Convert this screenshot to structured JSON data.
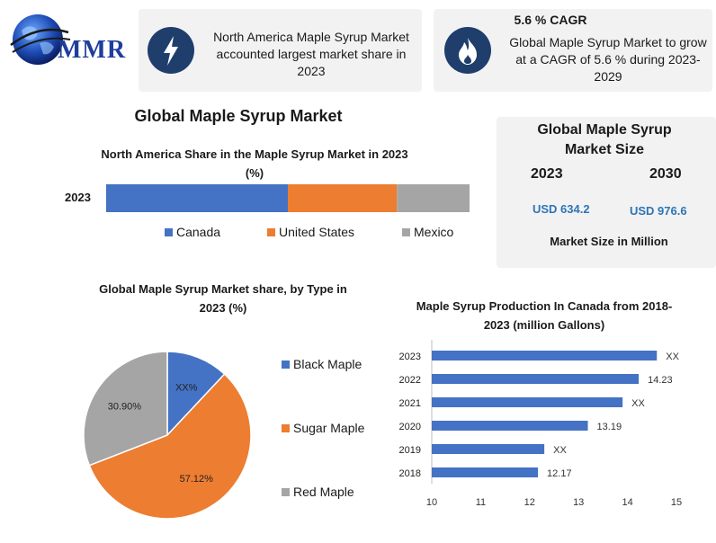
{
  "logo": {
    "text": "MMR"
  },
  "info_cards": [
    {
      "title": "",
      "text": "North America Maple Syrup Market accounted largest market share in 2023",
      "icon": "lightning-bolt-icon"
    },
    {
      "title": "5.6 % CAGR",
      "text": "Global Maple Syrup Market to grow at a CAGR of 5.6 % during 2023-2029",
      "icon": "flame-icon"
    }
  ],
  "page_title": "Global Maple Syrup Market",
  "market_size": {
    "title": "Global Maple Syrup Market Size",
    "year_a": "2023",
    "year_b": "2030",
    "value_a": "USD 634.2",
    "value_b": "USD 976.6",
    "footer": "Market Size in Million"
  },
  "colors": {
    "blue": "#4472c4",
    "orange": "#ed7d31",
    "gray": "#a5a5a5",
    "navy": "#1f3e6c",
    "card": "#f2f2f2",
    "accent_text": "#2e75b6"
  },
  "chart_data": [
    {
      "type": "bar",
      "orientation": "horizontal-stacked",
      "title": "North America Share in the Maple Syrup Market in 2023 (%)",
      "categories": [
        "2023"
      ],
      "series": [
        {
          "name": "Canada",
          "values": [
            50
          ]
        },
        {
          "name": "United States",
          "values": [
            30
          ]
        },
        {
          "name": "Mexico",
          "values": [
            20
          ]
        }
      ],
      "legend": "bottom"
    },
    {
      "type": "pie",
      "title": "Global Maple Syrup Market share, by Type in 2023 (%)",
      "labels": [
        "Black Maple",
        "Sugar Maple",
        "Red Maple"
      ],
      "values": [
        11.98,
        57.12,
        30.9
      ],
      "data_labels": [
        "XX%",
        "57.12%",
        "30.90%"
      ],
      "legend": "right"
    },
    {
      "type": "bar",
      "orientation": "horizontal",
      "title": "Maple Syrup Production In Canada from 2018-2023 (million Gallons)",
      "categories": [
        "2023",
        "2022",
        "2021",
        "2020",
        "2019",
        "2018"
      ],
      "values": [
        14.6,
        14.23,
        13.9,
        13.19,
        12.3,
        12.17
      ],
      "data_labels": [
        "XX",
        "14.23",
        "XX",
        "13.19",
        "XX",
        "12.17"
      ],
      "xlim": [
        10,
        15
      ],
      "xticks": [
        "10",
        "11",
        "12",
        "13",
        "14",
        "15"
      ]
    }
  ]
}
